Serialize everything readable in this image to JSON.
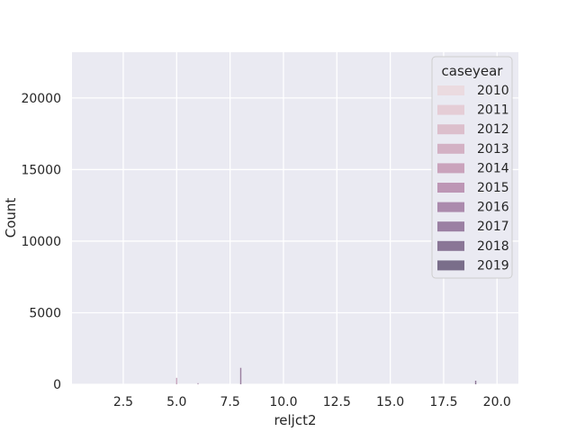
{
  "chart_data": {
    "type": "bar",
    "title": "",
    "xlabel": "reljct2",
    "ylabel": "Count",
    "xlim": [
      0.1,
      21
    ],
    "ylim": [
      0,
      23200
    ],
    "xticks": [
      "2.5",
      "5.0",
      "7.5",
      "10.0",
      "12.5",
      "15.0",
      "17.5",
      "20.0"
    ],
    "xtick_values": [
      2.5,
      5.0,
      7.5,
      10.0,
      12.5,
      15.0,
      17.5,
      20.0
    ],
    "yticks": [
      "0",
      "5000",
      "10000",
      "15000",
      "20000"
    ],
    "ytick_values": [
      0,
      5000,
      10000,
      15000,
      20000
    ],
    "grid": true,
    "legend": {
      "title": "caseyear",
      "placement": "top-right",
      "entries": [
        "2010",
        "2011",
        "2012",
        "2013",
        "2014",
        "2015",
        "2016",
        "2017",
        "2018",
        "2019"
      ],
      "colors": [
        "#ebdbe0",
        "#e5cdd6",
        "#dcbfcc",
        "#d3b1c4",
        "#caa3bc",
        "#bd96b5",
        "#ab8aad",
        "#9b80a3",
        "#8a7696",
        "#7a6e8a"
      ]
    },
    "series": [
      {
        "x": [
          5.0,
          6.0,
          8.0,
          19.0
        ],
        "values": [
          450,
          80,
          1150,
          250
        ]
      }
    ],
    "bar_colors": [
      "#c9a9bf",
      "#b7a0b8",
      "#9a7f9f",
      "#8b7695"
    ],
    "bar_width": 0.06
  }
}
